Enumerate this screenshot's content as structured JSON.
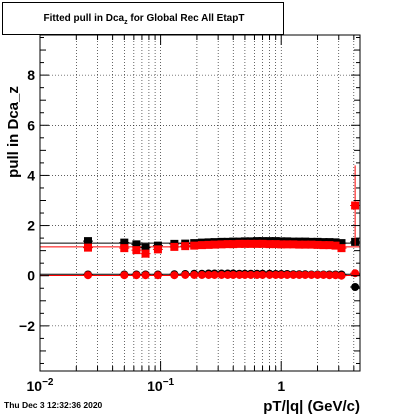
{
  "title": {
    "prefix": "Fitted pull in Dca",
    "subscript": "z",
    "suffix": " for Global Rec All EtapT"
  },
  "timestamp": "Thu Dec  3 12:32:36 2020",
  "colors": {
    "series_black": "#000000",
    "series_red": "#ff0000",
    "grid": "#000000"
  },
  "chart_data": {
    "type": "scatter",
    "title": "Fitted pull in Dca_z for Global Rec All EtapT",
    "xlabel": "pT/|q| (GeV/c)",
    "ylabel": "pull in Dca_z",
    "xscale": "log",
    "xlim": [
      0.01,
      4.5
    ],
    "ylim": [
      -3.8,
      9.6
    ],
    "grid": true,
    "x_tick_labels": [
      {
        "value": 0.01,
        "base": "10",
        "exp": "-2"
      },
      {
        "value": 0.1,
        "base": "10",
        "exp": "-1"
      },
      {
        "value": 1,
        "base": "1",
        "exp": ""
      }
    ],
    "y_ticks": [
      -2,
      0,
      2,
      4,
      6,
      8
    ],
    "series": [
      {
        "color": "black",
        "marker": "square",
        "x": [
          0.025,
          0.05,
          0.063,
          0.075,
          0.095,
          0.13,
          0.16,
          0.19,
          0.22,
          0.25,
          0.28,
          0.32,
          0.36,
          0.4,
          0.45,
          0.5,
          0.56,
          0.63,
          0.7,
          0.8,
          0.9,
          1.0,
          1.12,
          1.26,
          1.41,
          1.58,
          1.78,
          2.0,
          2.24,
          2.51,
          2.82,
          3.16,
          4.1
        ],
        "y": [
          1.38,
          1.32,
          1.25,
          1.12,
          1.2,
          1.27,
          1.28,
          1.3,
          1.32,
          1.33,
          1.34,
          1.35,
          1.35,
          1.36,
          1.36,
          1.37,
          1.37,
          1.38,
          1.38,
          1.38,
          1.38,
          1.37,
          1.37,
          1.36,
          1.36,
          1.36,
          1.35,
          1.35,
          1.34,
          1.34,
          1.33,
          1.3,
          1.35
        ]
      },
      {
        "color": "red",
        "marker": "square",
        "x": [
          0.025,
          0.05,
          0.063,
          0.075,
          0.095,
          0.13,
          0.16,
          0.19,
          0.22,
          0.25,
          0.28,
          0.32,
          0.36,
          0.4,
          0.45,
          0.5,
          0.56,
          0.63,
          0.7,
          0.8,
          0.9,
          1.0,
          1.12,
          1.26,
          1.41,
          1.58,
          1.78,
          2.0,
          2.24,
          2.51,
          2.82,
          3.16,
          4.1
        ],
        "y": [
          1.12,
          1.1,
          1.02,
          0.88,
          1.05,
          1.15,
          1.18,
          1.2,
          1.22,
          1.23,
          1.24,
          1.25,
          1.26,
          1.26,
          1.27,
          1.27,
          1.27,
          1.27,
          1.27,
          1.26,
          1.26,
          1.25,
          1.25,
          1.25,
          1.24,
          1.24,
          1.24,
          1.23,
          1.22,
          1.22,
          1.2,
          1.1,
          2.8
        ],
        "y_err": [
          0.05,
          0.05,
          0.05,
          0.05,
          0.05,
          0.05,
          0.05,
          0.05,
          0.05,
          0.05,
          0.05,
          0.05,
          0.05,
          0.05,
          0.05,
          0.05,
          0.05,
          0.05,
          0.05,
          0.05,
          0.05,
          0.05,
          0.05,
          0.05,
          0.05,
          0.05,
          0.05,
          0.05,
          0.05,
          0.05,
          0.05,
          0.1,
          1.6
        ]
      },
      {
        "color": "black",
        "marker": "circle",
        "x": [
          0.025,
          0.05,
          0.063,
          0.075,
          0.095,
          0.13,
          0.16,
          0.19,
          0.22,
          0.25,
          0.28,
          0.32,
          0.36,
          0.4,
          0.45,
          0.5,
          0.56,
          0.63,
          0.7,
          0.8,
          0.9,
          1.0,
          1.12,
          1.26,
          1.41,
          1.58,
          1.78,
          2.0,
          2.24,
          2.51,
          2.82,
          3.16,
          4.1
        ],
        "y": [
          0.05,
          0.05,
          0.05,
          0.05,
          0.05,
          0.06,
          0.07,
          0.08,
          0.08,
          0.09,
          0.09,
          0.09,
          0.09,
          0.09,
          0.08,
          0.08,
          0.08,
          0.08,
          0.08,
          0.08,
          0.07,
          0.07,
          0.07,
          0.06,
          0.06,
          0.06,
          0.05,
          0.05,
          0.05,
          0.05,
          0.05,
          0.05,
          -0.45
        ]
      },
      {
        "color": "red",
        "marker": "circle",
        "x": [
          0.025,
          0.05,
          0.063,
          0.075,
          0.095,
          0.13,
          0.16,
          0.19,
          0.22,
          0.25,
          0.28,
          0.32,
          0.36,
          0.4,
          0.45,
          0.5,
          0.56,
          0.63,
          0.7,
          0.8,
          0.9,
          1.0,
          1.12,
          1.26,
          1.41,
          1.58,
          1.78,
          2.0,
          2.24,
          2.51,
          2.82,
          3.16,
          4.1
        ],
        "y": [
          0.02,
          0.02,
          0.02,
          0.02,
          0.02,
          0.02,
          0.03,
          0.03,
          0.03,
          0.03,
          0.03,
          0.03,
          0.03,
          0.03,
          0.03,
          0.03,
          0.03,
          0.03,
          0.03,
          0.03,
          0.03,
          0.03,
          0.03,
          0.03,
          0.03,
          0.03,
          0.03,
          0.03,
          0.03,
          0.02,
          0.02,
          0.0,
          0.1
        ]
      }
    ],
    "reference_lines": [
      {
        "color": "black",
        "y": 1.3
      },
      {
        "color": "red",
        "y": 1.15
      },
      {
        "color": "black",
        "y": 0.06
      },
      {
        "color": "red",
        "y": 0.01
      }
    ]
  }
}
